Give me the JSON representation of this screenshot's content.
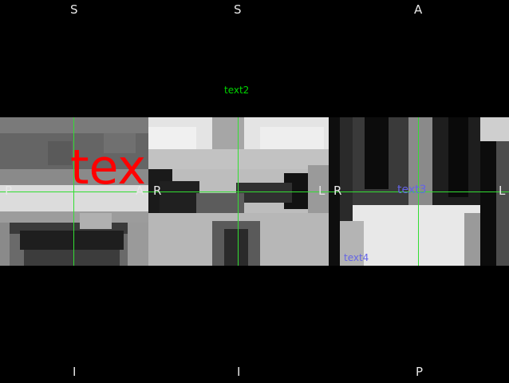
{
  "viewports": {
    "sagittal": {
      "orient_top": "S",
      "orient_bottom": "I",
      "orient_left": "P",
      "orient_right": "A"
    },
    "coronal": {
      "orient_top": "S",
      "orient_bottom": "I",
      "orient_left": "R",
      "orient_right": "L"
    },
    "axial": {
      "orient_top": "A",
      "orient_bottom": "P",
      "orient_left": "R",
      "orient_right": "L"
    }
  },
  "annotations": {
    "text1": "tex",
    "text2": "text2",
    "text3": "text3",
    "text4": "text4"
  },
  "colors": {
    "crosshair": "#33dd33",
    "text1": "#ff0000",
    "text2": "#00d400",
    "text3": "#6464e6",
    "text4": "#6464e6"
  }
}
